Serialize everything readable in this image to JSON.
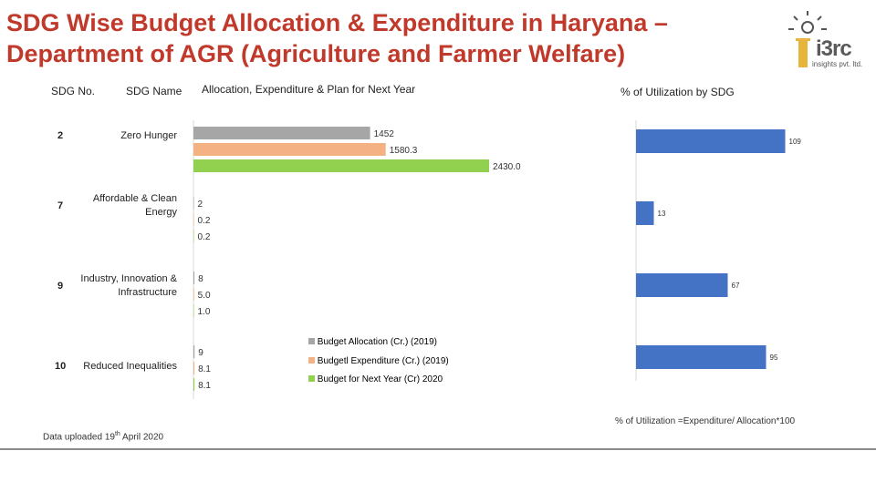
{
  "title_line1": "SDG Wise Budget Allocation & Expenditure in Haryana –",
  "title_line2": "Department of AGR (Agriculture and Farmer Welfare)",
  "logo": {
    "text": "i3rc",
    "sub": "insights pvt. ltd."
  },
  "headers": {
    "sdg_no": "SDG No.",
    "sdg_name": "SDG Name",
    "alloc_chart": "Allocation, Expenditure & Plan for Next Year",
    "util_chart": "% of Utilization by SDG"
  },
  "colors": {
    "allocation": "#a6a6a6",
    "expenditure": "#f4b183",
    "next_year": "#92d050",
    "utilization": "#4472c4",
    "title": "#c0392b"
  },
  "chart_data": [
    {
      "type": "bar",
      "orientation": "horizontal",
      "categories": [
        "Zero Hunger",
        "Affordable & Clean Energy",
        "Industry, Innovation & Infrastructure",
        "Reduced Inequalities"
      ],
      "sdg_numbers": [
        "2",
        "7",
        "9",
        "10"
      ],
      "series": [
        {
          "name": "Budget Allocation (Cr.) (2019)",
          "values": [
            1452,
            2,
            8,
            9
          ],
          "labels": [
            "1452",
            "2",
            "8",
            "9"
          ]
        },
        {
          "name": "Budgetl Expenditure (Cr.) (2019)",
          "values": [
            1580.3,
            0.2,
            5.0,
            8.1
          ],
          "labels": [
            "1580.3",
            "0.2",
            "5.0",
            "8.1"
          ]
        },
        {
          "name": "Budget for Next Year (Cr) 2020",
          "values": [
            2430.0,
            0.2,
            1.0,
            8.1
          ],
          "labels": [
            "2430.0",
            "0.2",
            "1.0",
            "8.1"
          ]
        }
      ],
      "xlim": [
        0,
        3000
      ]
    },
    {
      "type": "bar",
      "orientation": "horizontal",
      "categories": [
        "Zero Hunger",
        "Affordable & Clean Energy",
        "Industry, Innovation & Infrastructure",
        "Reduced Inequalities"
      ],
      "values": [
        109,
        13,
        67,
        95
      ],
      "labels": [
        "109",
        "13",
        "67",
        "95"
      ],
      "xlim": [
        0,
        110
      ]
    }
  ],
  "formula_note": "% of Utilization =Expenditure/ Allocation*100",
  "footer": {
    "prefix": "Data uploaded 19",
    "sup": "th",
    "suffix": " April 2020"
  }
}
